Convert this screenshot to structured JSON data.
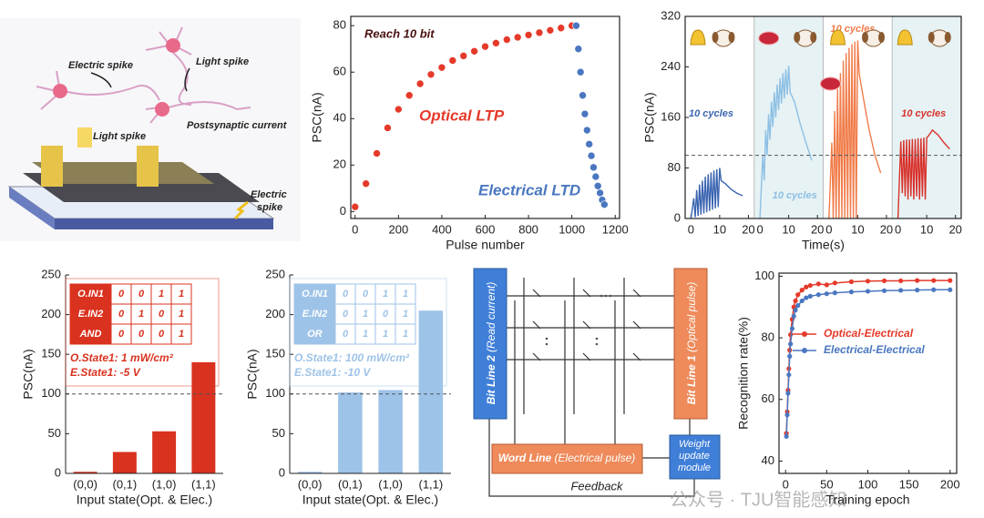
{
  "schematic": {
    "labels": [
      "Electric spike",
      "Light spike",
      "Postsynaptic current",
      "Light spike"
    ],
    "device_label": [
      "Electric",
      "spike"
    ]
  },
  "chart_data": [
    {
      "type": "scatter",
      "x_label": "Pulse number",
      "y_label": "PSC(nA)",
      "annotations": [
        "Reach 10 bit"
      ],
      "xlim": [
        -20,
        1220
      ],
      "xticks": [
        0,
        200,
        400,
        600,
        800,
        1000,
        1200
      ],
      "ylim": [
        -3,
        84
      ],
      "yticks": [
        0,
        20,
        40,
        60,
        80
      ],
      "series": [
        {
          "name": "Optical LTP",
          "color": "#e53a2a",
          "x": [
            0,
            50,
            100,
            150,
            200,
            250,
            300,
            350,
            400,
            450,
            500,
            550,
            600,
            650,
            700,
            750,
            800,
            850,
            900,
            950,
            1000
          ],
          "values": [
            2,
            12,
            25,
            36,
            44,
            50,
            55,
            59,
            62,
            65,
            67,
            69,
            71,
            72.5,
            74,
            75,
            76,
            77,
            78,
            79,
            80
          ]
        },
        {
          "name": "Electrical LTD",
          "color": "#4a77c0",
          "x": [
            1020,
            1030,
            1040,
            1050,
            1060,
            1070,
            1080,
            1090,
            1100,
            1110,
            1120,
            1130,
            1140,
            1150
          ],
          "values": [
            80,
            70,
            60,
            50,
            42,
            35,
            29,
            24,
            19,
            15,
            11,
            8,
            5,
            3
          ]
        }
      ]
    },
    {
      "type": "multipanel",
      "x_label": "Time(s)",
      "y_label": "PSC(nA)",
      "xlim": [
        -2,
        22
      ],
      "xticks": [
        0,
        10,
        20
      ],
      "ylim": [
        0,
        320
      ],
      "yticks": [
        0,
        80,
        160,
        240,
        320
      ],
      "reference_line": 100,
      "panels": [
        {
          "name": "10 cycles",
          "color": "#3a64b0",
          "shaded": false,
          "x": [
            0,
            1,
            1.5,
            2,
            2.5,
            3,
            3.5,
            4,
            4.5,
            5,
            5.5,
            6,
            6.5,
            7,
            7.5,
            8,
            8.5,
            9,
            9.5,
            10,
            10.5,
            12,
            14,
            16,
            18
          ],
          "values": [
            0,
            32,
            2,
            45,
            4,
            54,
            6,
            60,
            8,
            66,
            10,
            70,
            12,
            73,
            14,
            76,
            16,
            78,
            18,
            80,
            60,
            55,
            46,
            40,
            36
          ]
        },
        {
          "name": "10 cycles",
          "color": "#8ec0e4",
          "shaded": true,
          "x": [
            0,
            1,
            1.5,
            2,
            2.5,
            3,
            3.5,
            4,
            4.5,
            5,
            5.5,
            6,
            6.5,
            7,
            7.5,
            8,
            8.5,
            9,
            9.5,
            10,
            10.5,
            12,
            14,
            16,
            18
          ],
          "values": [
            0,
            100,
            60,
            140,
            100,
            165,
            125,
            185,
            145,
            200,
            160,
            212,
            172,
            222,
            182,
            230,
            190,
            236,
            196,
            242,
            200,
            185,
            150,
            120,
            92
          ]
        },
        {
          "name": "10 cycles",
          "color": "#f07c4a",
          "shaded": false,
          "x": [
            0,
            1,
            1.5,
            2,
            2.5,
            3,
            3.5,
            4,
            4.5,
            5,
            5.5,
            6,
            6.5,
            7,
            7.5,
            8,
            8.5,
            9,
            9.5,
            10,
            10.5,
            12,
            14,
            16,
            18
          ],
          "values": [
            0,
            120,
            0,
            170,
            0,
            205,
            0,
            230,
            0,
            250,
            0,
            262,
            0,
            270,
            0,
            276,
            0,
            280,
            0,
            282,
            230,
            190,
            140,
            100,
            72
          ]
        },
        {
          "name": "10 cycles",
          "color": "#d8302a",
          "shaded": true,
          "x": [
            0,
            1,
            1.5,
            2,
            2.5,
            3,
            3.5,
            4,
            4.5,
            5,
            5.5,
            6,
            6.5,
            7,
            7.5,
            8,
            8.5,
            9,
            9.5,
            10,
            10.5,
            12,
            14,
            16,
            18
          ],
          "values": [
            0,
            122,
            40,
            124,
            35,
            125,
            30,
            125,
            35,
            126,
            30,
            126,
            35,
            127,
            30,
            127,
            35,
            128,
            30,
            128,
            130,
            140,
            132,
            120,
            110
          ]
        }
      ]
    },
    {
      "type": "bar",
      "x_label": "Input state(Opt. & Elec.)",
      "y_label": "PSC(nA)",
      "color": "#d9321f",
      "categories": [
        "(0,0)",
        "(0,1)",
        "(1,0)",
        "(1,1)"
      ],
      "values": [
        2,
        27,
        53,
        140
      ],
      "ylim": [
        0,
        250
      ],
      "yticks": [
        0,
        50,
        100,
        150,
        200,
        250
      ],
      "reference_line": 100,
      "truth_table": {
        "rows": [
          [
            "O.IN1",
            "0",
            "0",
            "1",
            "1"
          ],
          [
            "E.IN2",
            "0",
            "1",
            "0",
            "1"
          ],
          [
            "AND",
            "0",
            "0",
            "0",
            "1"
          ]
        ]
      },
      "notes": [
        "O.State1: 1 mW/cm²",
        "E.State1: -5 V"
      ]
    },
    {
      "type": "bar",
      "x_label": "Input state(Opt. & Elec.)",
      "y_label": "PSC(nA)",
      "color": "#9ec3e8",
      "categories": [
        "(0,0)",
        "(0,1)",
        "(1,0)",
        "(1,1)"
      ],
      "values": [
        2,
        102,
        105,
        205
      ],
      "ylim": [
        0,
        250
      ],
      "yticks": [
        0,
        50,
        100,
        150,
        200,
        250
      ],
      "reference_line": 100,
      "truth_table": {
        "rows": [
          [
            "O.IN1",
            "0",
            "0",
            "1",
            "1"
          ],
          [
            "E.IN2",
            "0",
            "1",
            "0",
            "1"
          ],
          [
            "OR",
            "0",
            "1",
            "1",
            "1"
          ]
        ]
      },
      "notes": [
        "O.State1: 100 mW/cm²",
        "E.State1: -10 V"
      ]
    },
    {
      "type": "line",
      "x_label": "Training epoch",
      "y_label": "Recognition rate(%)",
      "legend": "right",
      "xlim": [
        -8,
        208
      ],
      "xticks": [
        0,
        50,
        100,
        150,
        200
      ],
      "ylim": [
        36,
        101
      ],
      "yticks": [
        40,
        60,
        80,
        100
      ],
      "series": [
        {
          "name": "Optical-Electrical",
          "color": "#e53a2a",
          "x": [
            1,
            2,
            3,
            4,
            5,
            6,
            8,
            10,
            12,
            15,
            20,
            25,
            30,
            40,
            50,
            60,
            80,
            100,
            120,
            140,
            160,
            180,
            200
          ],
          "values": [
            49,
            56,
            63,
            70,
            76,
            81,
            86,
            90,
            92,
            94,
            95.5,
            96.5,
            97,
            97.5,
            97.2,
            97.8,
            98.2,
            98.4,
            98.5,
            98.5,
            98.6,
            98.6,
            98.6
          ]
        },
        {
          "name": "Electrical-Electrical",
          "color": "#4a77c0",
          "x": [
            1,
            2,
            3,
            4,
            5,
            6,
            8,
            10,
            12,
            15,
            20,
            25,
            30,
            40,
            50,
            60,
            80,
            100,
            120,
            140,
            160,
            180,
            200
          ],
          "values": [
            48,
            55,
            62,
            68,
            74,
            78,
            83,
            87,
            89,
            90.5,
            92,
            93,
            93.5,
            94,
            94.3,
            94.6,
            94.9,
            95.1,
            95.3,
            95.4,
            95.5,
            95.6,
            95.6
          ]
        }
      ]
    }
  ],
  "circuit": {
    "bit_line_2": {
      "label": "Bit Line 2",
      "note": "(Read current)"
    },
    "bit_line_1": {
      "label": "Bit Line 1",
      "note": "(Optical pulse)"
    },
    "word_line": {
      "label": "Word Line",
      "note": "(Electrical pulse)"
    },
    "weight_module": [
      "Weight",
      "update",
      "module"
    ],
    "feedback": "Feedback"
  },
  "watermark": "公众号 · TJU智能感知"
}
